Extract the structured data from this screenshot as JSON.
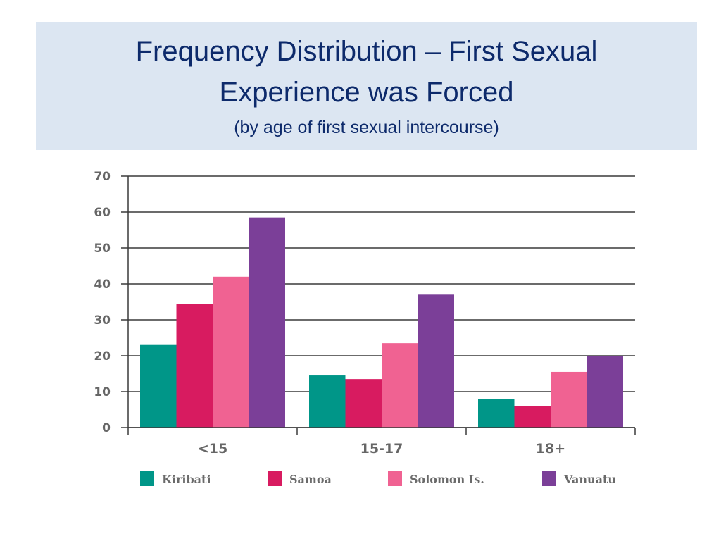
{
  "title": {
    "line1": "Frequency Distribution – First Sexual",
    "line2": "Experience was Forced",
    "subtitle": "(by age  of first sexual intercourse)"
  },
  "chart_data": {
    "type": "bar",
    "title": "Frequency Distribution – First Sexual Experience was Forced",
    "subtitle": "(by age  of first sexual intercourse)",
    "xlabel": "",
    "ylabel": "",
    "categories": [
      "<15",
      "15-17",
      "18+"
    ],
    "ylim": [
      0,
      70
    ],
    "yticks": [
      0,
      10,
      20,
      30,
      40,
      50,
      60,
      70
    ],
    "grid": true,
    "legend_position": "bottom",
    "series": [
      {
        "name": "Kiribati",
        "color": "#009688",
        "values": [
          23,
          14.5,
          8
        ]
      },
      {
        "name": "Samoa",
        "color": "#d81b60",
        "values": [
          34.5,
          13.5,
          6
        ]
      },
      {
        "name": "Solomon Is.",
        "color": "#f06292",
        "values": [
          42,
          23.5,
          15.5
        ]
      },
      {
        "name": "Vanuatu",
        "color": "#7b3f98",
        "values": [
          58.5,
          37,
          20
        ]
      }
    ]
  }
}
